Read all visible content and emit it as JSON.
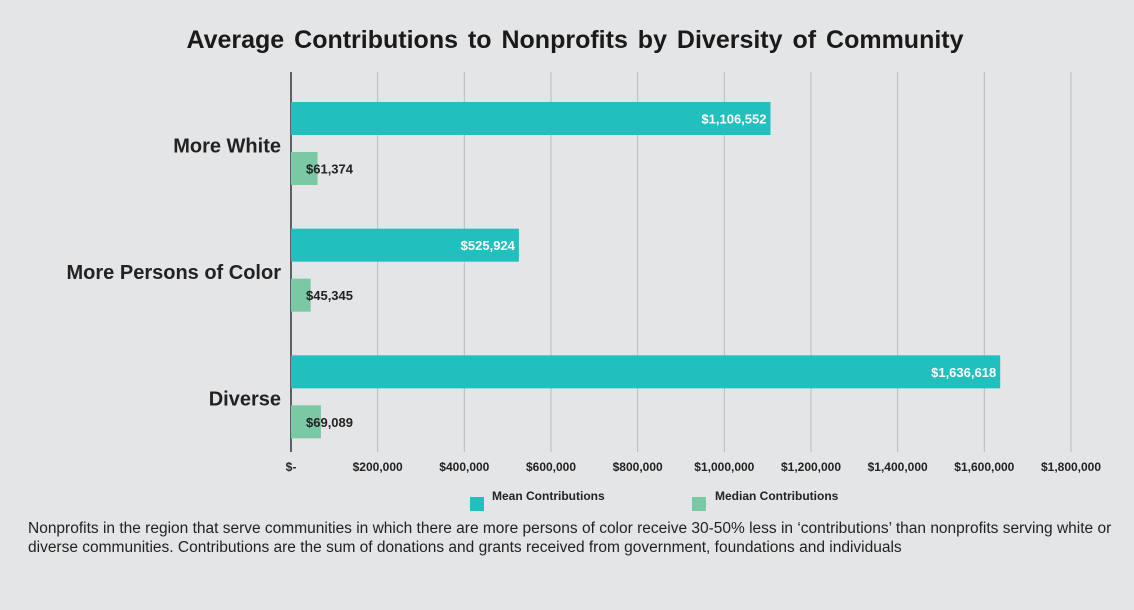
{
  "title": "Average Contributions to Nonprofits by Diversity of Community",
  "footnote": "Nonprofits in the region that serve communities in which there are more persons of color receive 30-50% less in ‘contributions’ than nonprofits serving white or diverse communities. Contributions are the sum of donations and grants received from government, foundations and individuals",
  "chart_data": {
    "type": "bar",
    "orientation": "horizontal",
    "title": "Average Contributions to Nonprofits by Diversity of Community",
    "categories": [
      "More White",
      "More Persons of Color",
      "Diverse"
    ],
    "series": [
      {
        "name": "Mean Contributions",
        "color": "#22bfbf",
        "values": [
          1106552,
          525924,
          1636618
        ],
        "labels": [
          "$1,106,552",
          "$525,924",
          "$1,636,618"
        ]
      },
      {
        "name": "Median Contributions",
        "color": "#7bc8a4",
        "values": [
          61374,
          45345,
          69089
        ],
        "labels": [
          "$61,374",
          "$45,345",
          "$69,089"
        ]
      }
    ],
    "xlim": [
      0,
      1800000
    ],
    "xticks": [
      0,
      200000,
      400000,
      600000,
      800000,
      1000000,
      1200000,
      1400000,
      1600000,
      1800000
    ],
    "xtick_labels": [
      "$-",
      "$200,000",
      "$400,000",
      "$600,000",
      "$800,000",
      "$1,000,000",
      "$1,200,000",
      "$1,400,000",
      "$1,600,000",
      "$1,800,000"
    ],
    "grid": "vertical",
    "legend": "bottom"
  }
}
